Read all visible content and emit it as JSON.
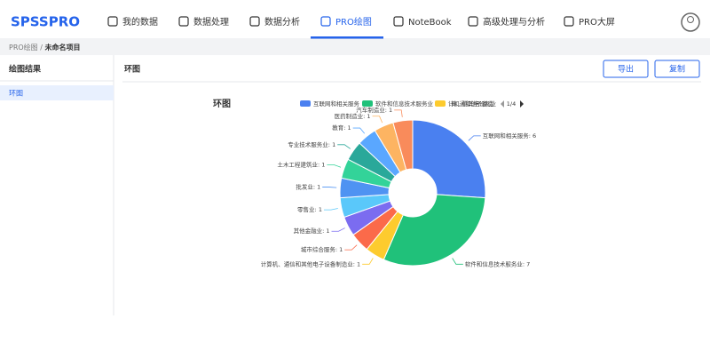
{
  "header": {
    "logo": "SPSSPRO",
    "nav": [
      "我的数据",
      "数据处理",
      "数据分析",
      "PRO绘图",
      "NoteBook",
      "高级处理与分析",
      "PRO大屏"
    ],
    "active": 3
  },
  "breadcrumb": {
    "parent": "PRO绘图",
    "separator": "/",
    "current": "未命名项目"
  },
  "sidebar": {
    "title": "绘图结果",
    "items": [
      "环图"
    ]
  },
  "panel": {
    "title": "环图",
    "buttons": [
      "导出",
      "复制"
    ]
  },
  "chart_data": {
    "type": "donut",
    "title": "环图",
    "legend_page": "1/4",
    "label_separator": ": ",
    "categories": [
      "互联网和相关服务",
      "软件和信息技术服务业",
      "计算机、通信和其他电子设备制造业",
      "城市综合服务",
      "其他金融业",
      "零售业",
      "批发业",
      "土木工程建筑业",
      "专业技术服务业",
      "教育",
      "医药制造业",
      "汽车制造业"
    ],
    "values": [
      6,
      7,
      1,
      1,
      1,
      1,
      1,
      1,
      1,
      1,
      1,
      1
    ],
    "colors": [
      "#4a80f0",
      "#20c17a",
      "#fdcb2e",
      "#fb6a4a",
      "#7b6cf0",
      "#5ac8fa",
      "#4f93f2",
      "#33d399",
      "#2aa89a",
      "#5aa7ff",
      "#fdb462",
      "#f98b5b"
    ]
  }
}
